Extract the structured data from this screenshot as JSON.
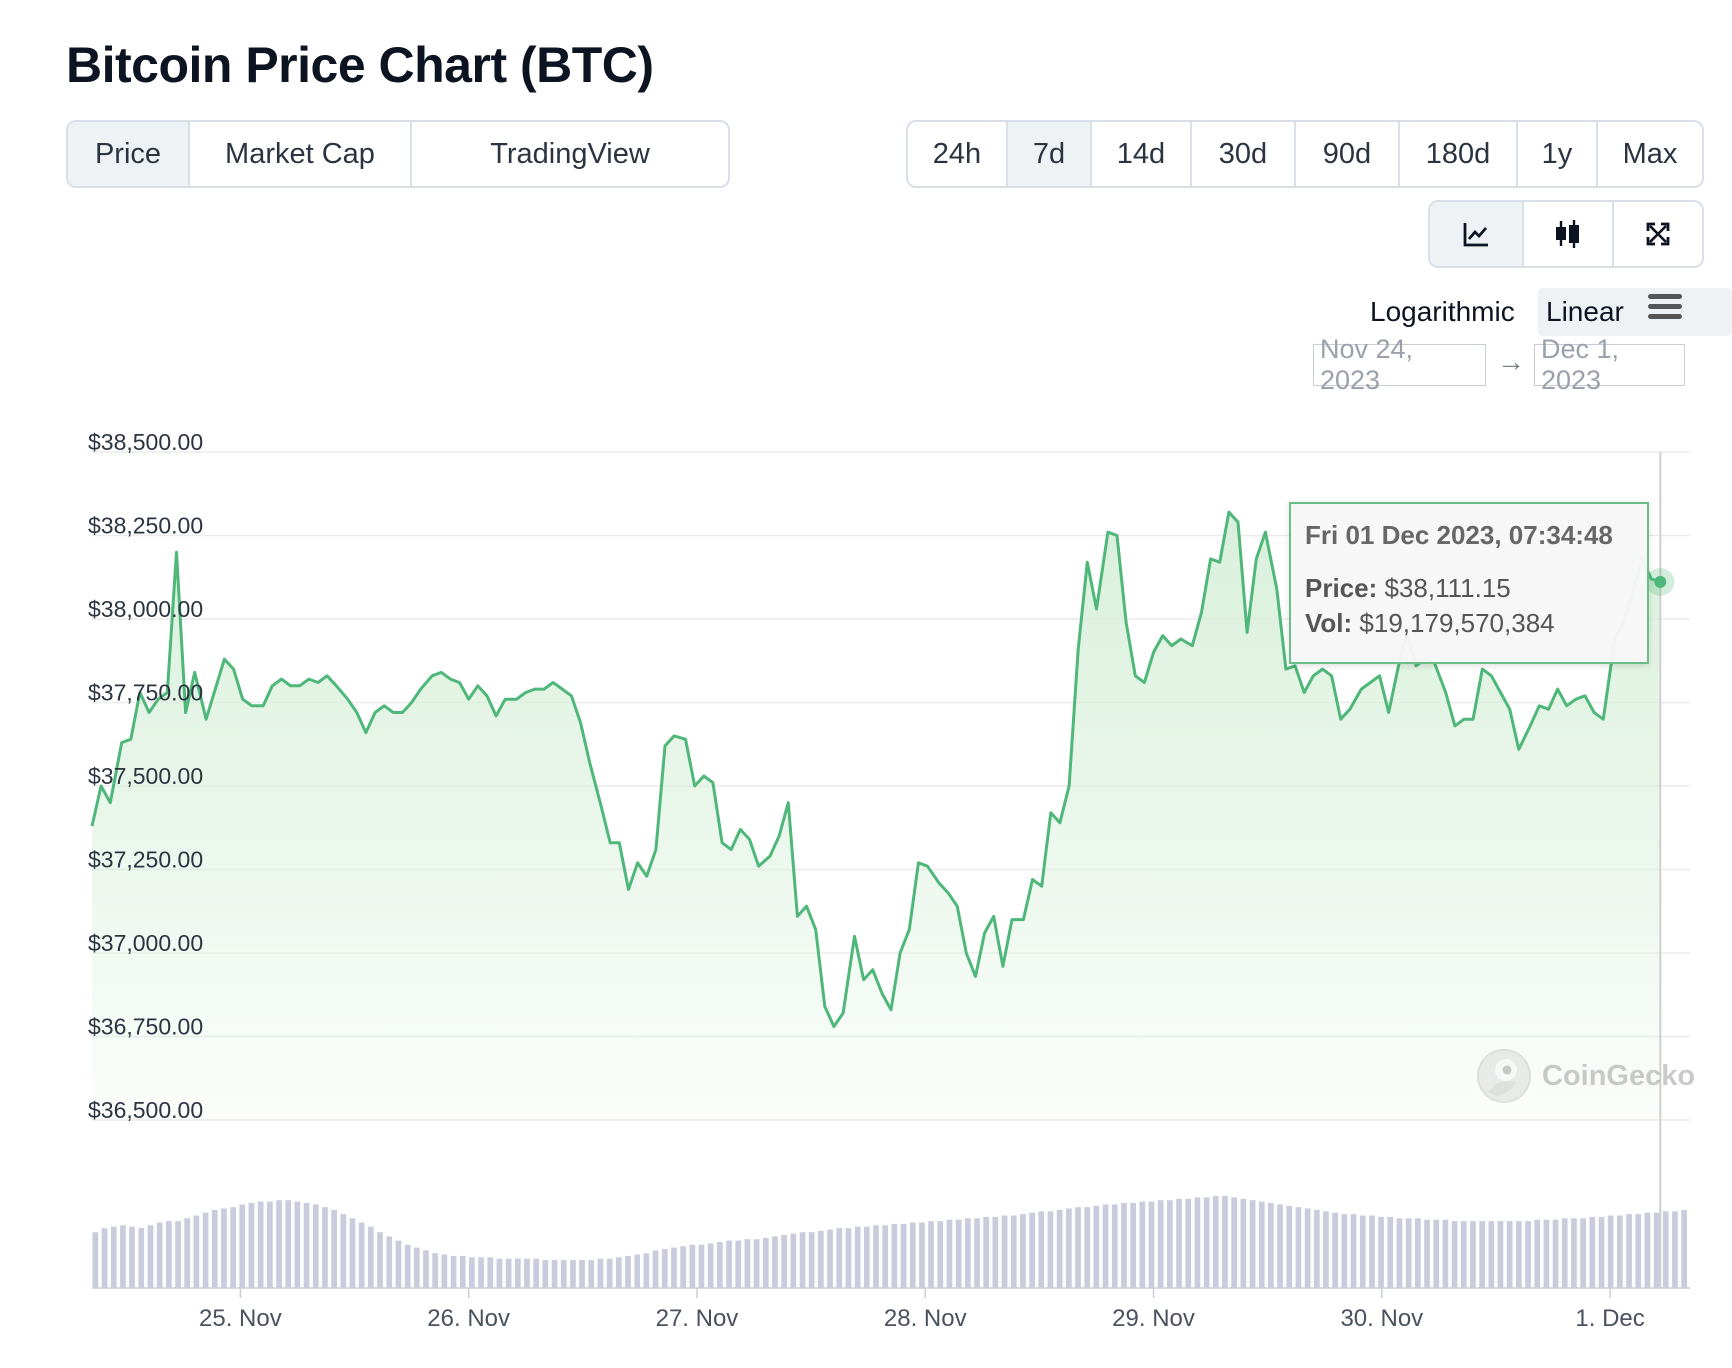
{
  "title": "Bitcoin Price Chart (BTC)",
  "type_tabs": [
    {
      "label": "Price",
      "active": true
    },
    {
      "label": "Market Cap",
      "active": false
    },
    {
      "label": "TradingView",
      "active": false
    }
  ],
  "range_tabs": [
    {
      "label": "24h",
      "active": false
    },
    {
      "label": "7d",
      "active": true
    },
    {
      "label": "14d",
      "active": false
    },
    {
      "label": "30d",
      "active": false
    },
    {
      "label": "90d",
      "active": false
    },
    {
      "label": "180d",
      "active": false
    },
    {
      "label": "1y",
      "active": false
    },
    {
      "label": "Max",
      "active": false
    }
  ],
  "view_tabs": [
    {
      "icon": "line-chart-icon",
      "active": true
    },
    {
      "icon": "candlestick-icon",
      "active": false
    },
    {
      "icon": "expand-icon",
      "active": false
    }
  ],
  "scale": {
    "log_label": "Logarithmic",
    "linear_label": "Linear",
    "selected": "Linear"
  },
  "date_range": {
    "from": "Nov 24, 2023",
    "to": "Dec 1, 2023",
    "arrow": "→"
  },
  "tooltip": {
    "date": "Fri 01 Dec 2023, 07:34:48",
    "price_label": "Price:",
    "price_value": "$38,111.15",
    "vol_label": "Vol:",
    "vol_value": "$19,179,570,384"
  },
  "watermark": "CoinGecko",
  "colors": {
    "line": "#4eb779",
    "fill": "#e3f3e4",
    "volume": "#c8ccdc",
    "grid": "#ececec"
  },
  "chart_data": {
    "type": "line",
    "title": "Bitcoin Price Chart (BTC)",
    "y_ticks": [
      {
        "value": 38500,
        "label": "$38,500.00"
      },
      {
        "value": 38250,
        "label": "$38,250.00"
      },
      {
        "value": 38000,
        "label": "$38,000.00"
      },
      {
        "value": 37750,
        "label": "$37,750.00"
      },
      {
        "value": 37500,
        "label": "$37,500.00"
      },
      {
        "value": 37250,
        "label": "$37,250.00"
      },
      {
        "value": 37000,
        "label": "$37,000.00"
      },
      {
        "value": 36750,
        "label": "$36,750.00"
      },
      {
        "value": 36500,
        "label": "$36,500.00"
      }
    ],
    "ylim": [
      36500,
      38500
    ],
    "x_ticks": [
      {
        "value": 0.65,
        "label": "25. Nov"
      },
      {
        "value": 1.65,
        "label": "26. Nov"
      },
      {
        "value": 2.65,
        "label": "27. Nov"
      },
      {
        "value": 3.65,
        "label": "28. Nov"
      },
      {
        "value": 4.65,
        "label": "29. Nov"
      },
      {
        "value": 5.65,
        "label": "30. Nov"
      },
      {
        "value": 6.65,
        "label": "1. Dec"
      }
    ],
    "xlim": [
      0,
      7
    ],
    "series": [
      {
        "name": "Price (USD)",
        "points": [
          [
            0.0,
            37380
          ],
          [
            0.04,
            37500
          ],
          [
            0.08,
            37450
          ],
          [
            0.13,
            37630
          ],
          [
            0.17,
            37640
          ],
          [
            0.21,
            37780
          ],
          [
            0.25,
            37720
          ],
          [
            0.29,
            37760
          ],
          [
            0.33,
            37780
          ],
          [
            0.37,
            38200
          ],
          [
            0.41,
            37720
          ],
          [
            0.45,
            37840
          ],
          [
            0.5,
            37700
          ],
          [
            0.54,
            37790
          ],
          [
            0.58,
            37880
          ],
          [
            0.62,
            37850
          ],
          [
            0.66,
            37760
          ],
          [
            0.7,
            37740
          ],
          [
            0.75,
            37740
          ],
          [
            0.79,
            37800
          ],
          [
            0.83,
            37820
          ],
          [
            0.87,
            37800
          ],
          [
            0.91,
            37800
          ],
          [
            0.95,
            37820
          ],
          [
            0.99,
            37810
          ],
          [
            1.03,
            37830
          ],
          [
            1.07,
            37800
          ],
          [
            1.12,
            37760
          ],
          [
            1.16,
            37720
          ],
          [
            1.2,
            37660
          ],
          [
            1.24,
            37720
          ],
          [
            1.28,
            37740
          ],
          [
            1.32,
            37720
          ],
          [
            1.36,
            37720
          ],
          [
            1.4,
            37750
          ],
          [
            1.44,
            37790
          ],
          [
            1.49,
            37830
          ],
          [
            1.53,
            37840
          ],
          [
            1.57,
            37820
          ],
          [
            1.61,
            37810
          ],
          [
            1.65,
            37760
          ],
          [
            1.69,
            37800
          ],
          [
            1.73,
            37770
          ],
          [
            1.77,
            37710
          ],
          [
            1.81,
            37760
          ],
          [
            1.86,
            37760
          ],
          [
            1.9,
            37780
          ],
          [
            1.94,
            37790
          ],
          [
            1.98,
            37790
          ],
          [
            2.02,
            37810
          ],
          [
            2.06,
            37790
          ],
          [
            2.1,
            37770
          ],
          [
            2.14,
            37690
          ],
          [
            2.18,
            37570
          ],
          [
            2.23,
            37440
          ],
          [
            2.27,
            37330
          ],
          [
            2.31,
            37330
          ],
          [
            2.35,
            37190
          ],
          [
            2.39,
            37270
          ],
          [
            2.43,
            37230
          ],
          [
            2.47,
            37310
          ],
          [
            2.51,
            37620
          ],
          [
            2.55,
            37650
          ],
          [
            2.6,
            37640
          ],
          [
            2.64,
            37500
          ],
          [
            2.68,
            37530
          ],
          [
            2.72,
            37510
          ],
          [
            2.76,
            37330
          ],
          [
            2.8,
            37310
          ],
          [
            2.84,
            37370
          ],
          [
            2.88,
            37340
          ],
          [
            2.92,
            37260
          ],
          [
            2.97,
            37290
          ],
          [
            3.01,
            37350
          ],
          [
            3.05,
            37450
          ],
          [
            3.09,
            37110
          ],
          [
            3.13,
            37140
          ],
          [
            3.17,
            37070
          ],
          [
            3.21,
            36840
          ],
          [
            3.25,
            36780
          ],
          [
            3.29,
            36820
          ],
          [
            3.34,
            37050
          ],
          [
            3.38,
            36920
          ],
          [
            3.42,
            36950
          ],
          [
            3.46,
            36880
          ],
          [
            3.5,
            36830
          ],
          [
            3.54,
            37000
          ],
          [
            3.58,
            37070
          ],
          [
            3.62,
            37270
          ],
          [
            3.66,
            37260
          ],
          [
            3.71,
            37210
          ],
          [
            3.75,
            37180
          ],
          [
            3.79,
            37140
          ],
          [
            3.83,
            37000
          ],
          [
            3.87,
            36930
          ],
          [
            3.91,
            37060
          ],
          [
            3.95,
            37110
          ],
          [
            3.99,
            36960
          ],
          [
            4.03,
            37100
          ],
          [
            4.08,
            37100
          ],
          [
            4.12,
            37220
          ],
          [
            4.16,
            37200
          ],
          [
            4.2,
            37420
          ],
          [
            4.24,
            37390
          ],
          [
            4.28,
            37500
          ],
          [
            4.32,
            37910
          ],
          [
            4.36,
            38170
          ],
          [
            4.4,
            38030
          ],
          [
            4.45,
            38260
          ],
          [
            4.49,
            38250
          ],
          [
            4.53,
            37990
          ],
          [
            4.57,
            37830
          ],
          [
            4.61,
            37810
          ],
          [
            4.65,
            37900
          ],
          [
            4.69,
            37950
          ],
          [
            4.73,
            37920
          ],
          [
            4.77,
            37940
          ],
          [
            4.82,
            37920
          ],
          [
            4.86,
            38020
          ],
          [
            4.9,
            38180
          ],
          [
            4.94,
            38170
          ],
          [
            4.98,
            38320
          ],
          [
            5.02,
            38290
          ],
          [
            5.06,
            37960
          ],
          [
            5.1,
            38180
          ],
          [
            5.14,
            38260
          ],
          [
            5.19,
            38090
          ],
          [
            5.23,
            37850
          ],
          [
            5.27,
            37860
          ],
          [
            5.31,
            37780
          ],
          [
            5.35,
            37830
          ],
          [
            5.39,
            37850
          ],
          [
            5.43,
            37830
          ],
          [
            5.47,
            37700
          ],
          [
            5.51,
            37730
          ],
          [
            5.56,
            37790
          ],
          [
            5.6,
            37810
          ],
          [
            5.64,
            37830
          ],
          [
            5.68,
            37720
          ],
          [
            5.72,
            37850
          ],
          [
            5.76,
            37960
          ],
          [
            5.8,
            37860
          ],
          [
            5.84,
            37880
          ],
          [
            5.88,
            37870
          ],
          [
            5.93,
            37780
          ],
          [
            5.97,
            37680
          ],
          [
            6.01,
            37700
          ],
          [
            6.05,
            37700
          ],
          [
            6.09,
            37850
          ],
          [
            6.13,
            37830
          ],
          [
            6.17,
            37780
          ],
          [
            6.21,
            37730
          ],
          [
            6.25,
            37610
          ],
          [
            6.3,
            37680
          ],
          [
            6.34,
            37740
          ],
          [
            6.38,
            37730
          ],
          [
            6.42,
            37790
          ],
          [
            6.46,
            37740
          ],
          [
            6.5,
            37760
          ],
          [
            6.54,
            37770
          ],
          [
            6.58,
            37720
          ],
          [
            6.62,
            37700
          ],
          [
            6.67,
            37940
          ],
          [
            6.71,
            37990
          ],
          [
            6.75,
            38080
          ],
          [
            6.79,
            38180
          ],
          [
            6.83,
            38120
          ],
          [
            6.87,
            38111
          ]
        ]
      },
      {
        "name": "Volume",
        "values": [
          40,
          43,
          44,
          45,
          44,
          43,
          45,
          47,
          48,
          48,
          50,
          52,
          54,
          56,
          57,
          58,
          60,
          61,
          62,
          62,
          63,
          63,
          62,
          61,
          60,
          58,
          56,
          53,
          50,
          47,
          44,
          40,
          37,
          34,
          31,
          29,
          27,
          25,
          24,
          23,
          23,
          22,
          22,
          22,
          21,
          21,
          21,
          21,
          21,
          20,
          20,
          20,
          20,
          20,
          20,
          21,
          21,
          22,
          23,
          24,
          25,
          27,
          28,
          29,
          30,
          31,
          31,
          32,
          33,
          34,
          34,
          35,
          35,
          36,
          37,
          38,
          39,
          40,
          40,
          41,
          42,
          43,
          43,
          44,
          44,
          45,
          45,
          46,
          46,
          47,
          47,
          48,
          48,
          49,
          49,
          50,
          50,
          51,
          51,
          52,
          52,
          53,
          54,
          55,
          55,
          56,
          57,
          58,
          58,
          59,
          60,
          60,
          61,
          61,
          62,
          62,
          63,
          63,
          64,
          64,
          65,
          65,
          66,
          66,
          65,
          64,
          63,
          62,
          61,
          60,
          59,
          58,
          57,
          56,
          55,
          54,
          53,
          53,
          52,
          52,
          51,
          51,
          50,
          50,
          50,
          49,
          49,
          49,
          48,
          48,
          48,
          48,
          48,
          48,
          48,
          48,
          48,
          49,
          49,
          49,
          50,
          50,
          50,
          51,
          51,
          52,
          52,
          53,
          53,
          54,
          54,
          55,
          55,
          56
        ]
      }
    ],
    "highlight": {
      "x": 6.87,
      "y": 38111.15
    }
  }
}
